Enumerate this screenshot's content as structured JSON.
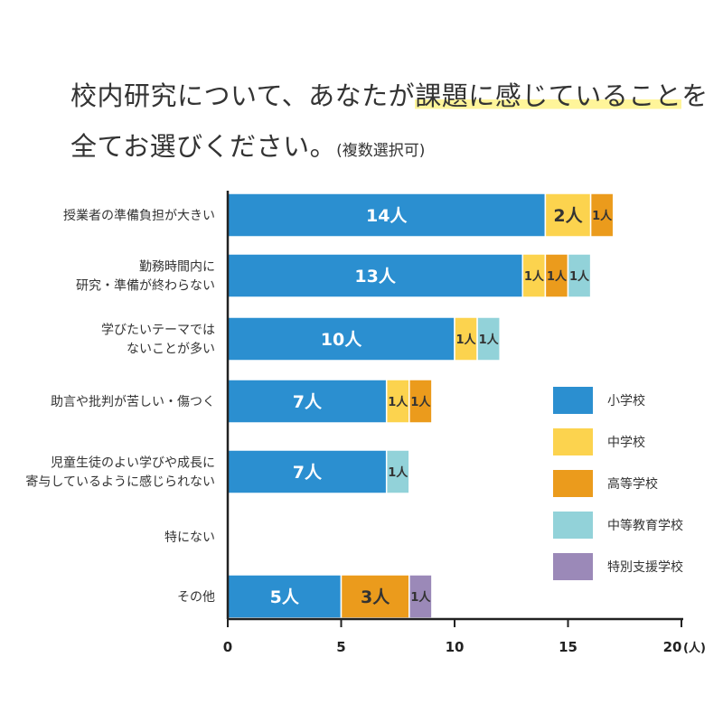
{
  "title": {
    "line1_a": "校内研究について、あなたが",
    "line1_hl": "課題に感じていること",
    "line1_b": "を",
    "line2": "全てお選びください。",
    "line2_note": "(複数選択可)"
  },
  "chart_data": {
    "type": "bar",
    "orientation": "horizontal",
    "stacked": true,
    "unit_suffix": "人",
    "categories": [
      [
        "授業者の準備負担が大きい"
      ],
      [
        "勤務時間内に",
        "研究・準備が終わらない"
      ],
      [
        "学びたいテーマでは",
        "ないことが多い"
      ],
      [
        "助言や批判が苦しい・傷つく"
      ],
      [
        "児童生徒のよい学びや成長に",
        "寄与しているように感じられない"
      ],
      [
        "特にない"
      ],
      [
        "その他"
      ]
    ],
    "series": [
      {
        "name": "小学校",
        "color": "#2b8fd0",
        "values": [
          14,
          13,
          10,
          7,
          7,
          0,
          5
        ]
      },
      {
        "name": "中学校",
        "color": "#fcd34e",
        "values": [
          2,
          1,
          1,
          1,
          0,
          0,
          0
        ]
      },
      {
        "name": "高等学校",
        "color": "#eb9b1c",
        "values": [
          1,
          1,
          0,
          1,
          0,
          0,
          3
        ]
      },
      {
        "name": "中等教育学校",
        "color": "#92d2d9",
        "values": [
          0,
          1,
          1,
          0,
          1,
          0,
          0
        ]
      },
      {
        "name": "特別支援学校",
        "color": "#9b89b8",
        "values": [
          0,
          0,
          0,
          0,
          0,
          0,
          1
        ]
      }
    ],
    "xlim": [
      0,
      20
    ],
    "xticks": [
      0,
      5,
      10,
      15,
      20
    ],
    "xtick_suffix": "(人)",
    "legend_position": "right"
  }
}
